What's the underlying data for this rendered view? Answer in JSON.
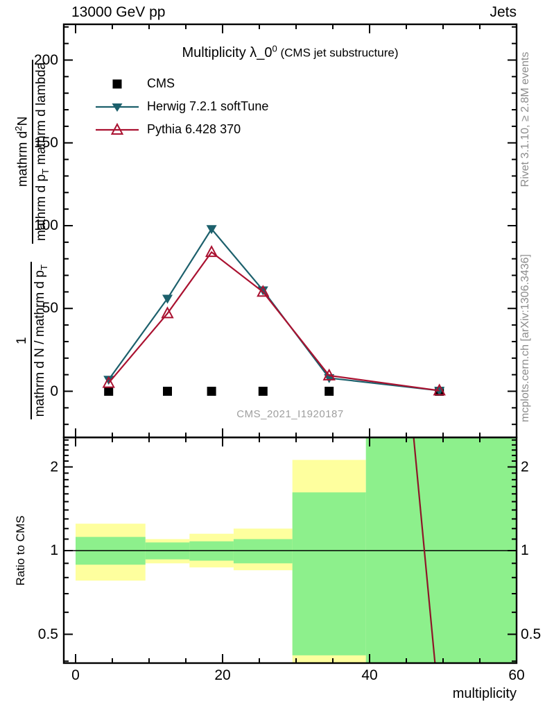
{
  "header": {
    "left": "13000 GeV pp",
    "right": "Jets"
  },
  "title": {
    "main": "Multiplicity λ_0",
    "sup": "0",
    "paren": " (CMS jet substructure)"
  },
  "watermark": "CMS_2021_I1920187",
  "side_notes": {
    "top": "Rivet 3.1.10, ≥ 2.8M events",
    "bottom": "mcplots.cern.ch [arXiv:1306.3436]"
  },
  "xaxis_title": "multiplicity",
  "ylabel": {
    "f1num": "1",
    "f1den_a": "mathrm d N / mathrm d p",
    "f1den_sub": "T",
    "f2num_a": "mathrm d",
    "f2num_sup": "2",
    "f2num_b": "N",
    "f2den_a": "mathrm d p",
    "f2den_sub": "T",
    "f2den_b": " mathrm d lambda"
  },
  "ratio_ylabel": "Ratio to CMS",
  "chart_data": {
    "type": "line",
    "title": "Multiplicity λ_0^0 (CMS jet substructure)",
    "xlabel": "multiplicity",
    "ylabel": "1/(mathrm dN/mathrm dp_T) · mathrm d²N/(mathrm dp_T mathrm dlambda)",
    "x": [
      4.5,
      12.5,
      18.5,
      25.5,
      34.5,
      49.5
    ],
    "xlim": [
      -1.6,
      60
    ],
    "main_panel": {
      "ylim": [
        -28,
        222
      ],
      "xticks": [
        0,
        20,
        40,
        60
      ],
      "yticks": [
        0,
        50,
        100,
        150,
        200
      ],
      "series": [
        {
          "name": "CMS",
          "marker": "filled-square",
          "color": "#000000",
          "line": false,
          "values": [
            0,
            0,
            0,
            0,
            0,
            0
          ]
        },
        {
          "name": "Herwig 7.2.1 softTune",
          "marker": "filled-triangle-down",
          "color": "#1c606c",
          "line": true,
          "values": [
            7,
            56,
            98,
            61,
            8,
            0.4
          ]
        },
        {
          "name": "Pythia 6.428 370",
          "marker": "open-triangle-up",
          "color": "#aa1130",
          "line": true,
          "values": [
            5,
            47,
            84,
            60,
            9.5,
            0.4
          ]
        }
      ]
    },
    "ratio_panel": {
      "yscale": "log",
      "ylim": [
        0.39,
        2.56
      ],
      "yticks": [
        "0.5",
        "1",
        "2"
      ],
      "reference_line": 1,
      "band_colors": {
        "inner": "#8df08c",
        "outer": "#feff9e"
      },
      "bands": [
        {
          "x": [
            0,
            9.5
          ],
          "green": [
            0.89,
            1.12
          ],
          "yellow": [
            0.78,
            1.25
          ]
        },
        {
          "x": [
            9.5,
            15.5
          ],
          "green": [
            0.93,
            1.07
          ],
          "yellow": [
            0.9,
            1.1
          ]
        },
        {
          "x": [
            15.5,
            21.5
          ],
          "green": [
            0.92,
            1.08
          ],
          "yellow": [
            0.87,
            1.15
          ]
        },
        {
          "x": [
            21.5,
            29.5
          ],
          "green": [
            0.9,
            1.1
          ],
          "yellow": [
            0.85,
            1.2
          ]
        },
        {
          "x": [
            29.5,
            39.5
          ],
          "green": [
            0.42,
            1.62
          ],
          "yellow": [
            0.37,
            2.12
          ]
        },
        {
          "x": [
            39.5,
            60
          ],
          "green": [
            0.37,
            2.6
          ],
          "yellow": null
        }
      ],
      "pythia_line": {
        "color": "#8d1528",
        "points": [
          {
            "x": 46.0,
            "y": 2.56
          },
          {
            "x": 48.9,
            "y": 0.39
          }
        ]
      }
    }
  }
}
